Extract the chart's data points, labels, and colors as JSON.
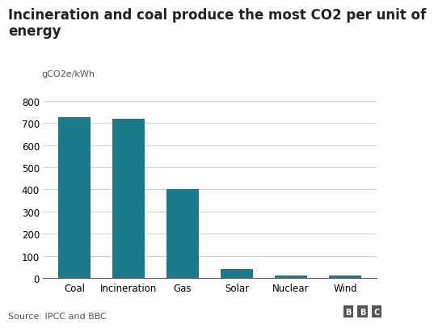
{
  "categories": [
    "Coal",
    "Incineration",
    "Gas",
    "Solar",
    "Nuclear",
    "Wind"
  ],
  "values": [
    728,
    720,
    400,
    40,
    12,
    11
  ],
  "bar_color": "#1a7a8a",
  "title_line1": "Incineration and coal produce the most CO2 per unit of",
  "title_line2": "energy",
  "ylabel": "gCO2e/kWh",
  "ylim": [
    0,
    800
  ],
  "yticks": [
    0,
    100,
    200,
    300,
    400,
    500,
    600,
    700,
    800
  ],
  "source_text": "Source: IPCC and BBC",
  "bbc_letters": [
    "B",
    "B",
    "C"
  ],
  "title_fontsize": 12,
  "ylabel_fontsize": 8,
  "tick_fontsize": 8.5,
  "source_fontsize": 8,
  "background_color": "#ffffff"
}
